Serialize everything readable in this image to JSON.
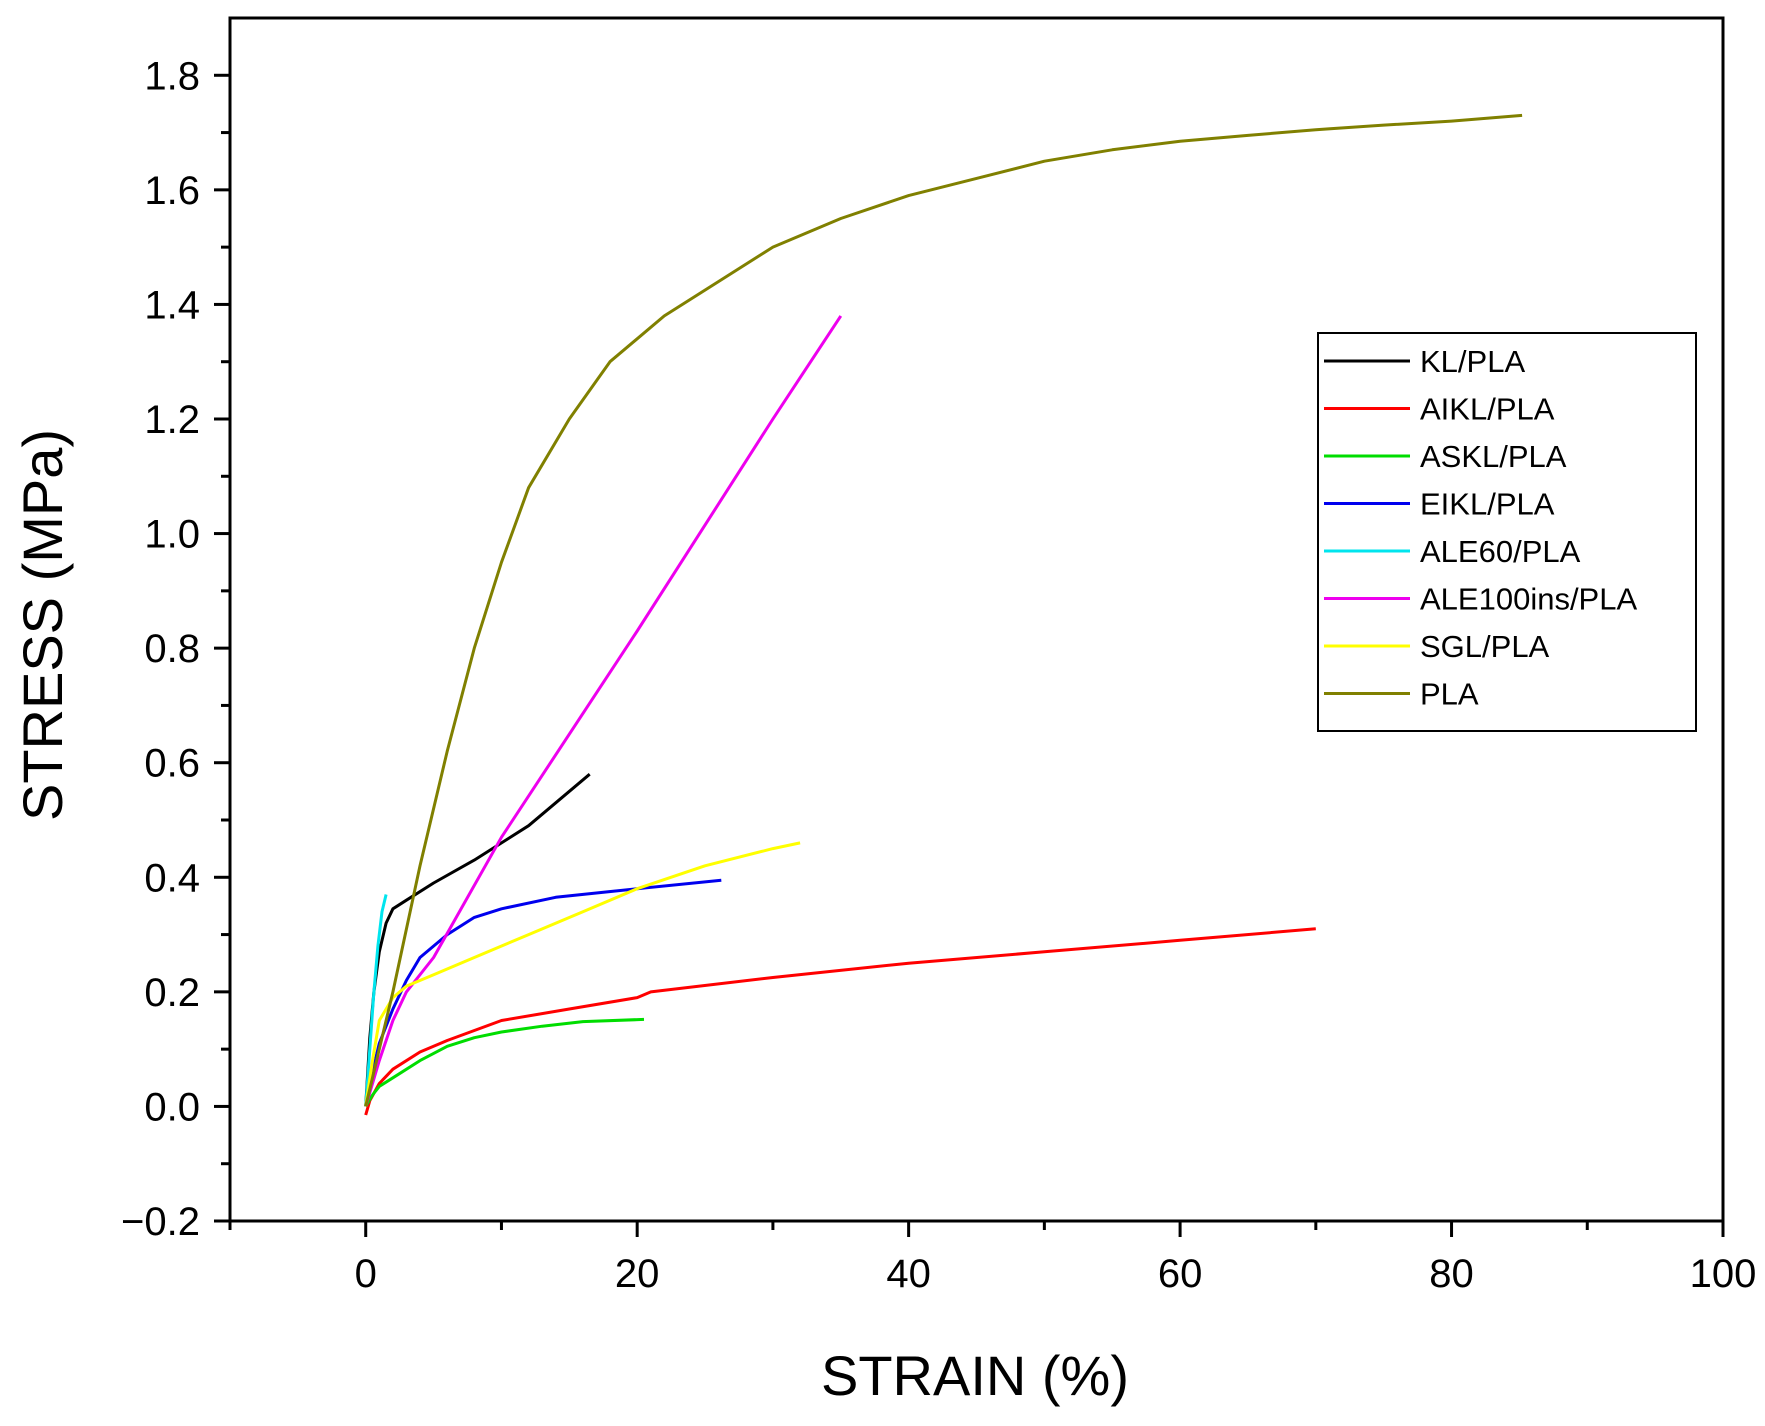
{
  "chart_data": {
    "type": "line",
    "title": "",
    "xlabel": "STRAIN (%)",
    "ylabel": "STRESS (MPa)",
    "xlim": [
      -10,
      100
    ],
    "ylim": [
      -0.2,
      1.9
    ],
    "x_ticks": [
      0,
      20,
      40,
      60,
      80,
      100
    ],
    "x_tick_labels": [
      "0",
      "20",
      "40",
      "60",
      "80",
      "100"
    ],
    "y_ticks": [
      -0.2,
      0.0,
      0.2,
      0.4,
      0.6,
      0.8,
      1.0,
      1.2,
      1.4,
      1.6,
      1.8
    ],
    "y_tick_labels": [
      "−0.2",
      "0.0",
      "0.2",
      "0.4",
      "0.6",
      "0.8",
      "1.0",
      "1.2",
      "1.4",
      "1.6",
      "1.8"
    ],
    "grid": false,
    "legend_position": "right",
    "series": [
      {
        "name": "KL/PLA",
        "color": "#000000",
        "points": [
          [
            0,
            0
          ],
          [
            0.3,
            0.12
          ],
          [
            0.6,
            0.2
          ],
          [
            1.0,
            0.27
          ],
          [
            1.5,
            0.32
          ],
          [
            2.0,
            0.345
          ],
          [
            3.0,
            0.36
          ],
          [
            5.0,
            0.39
          ],
          [
            8.0,
            0.43
          ],
          [
            12.0,
            0.49
          ],
          [
            16.5,
            0.58
          ]
        ]
      },
      {
        "name": "AIKL/PLA",
        "color": "#ff0000",
        "points": [
          [
            0,
            -0.015
          ],
          [
            0.3,
            0.01
          ],
          [
            1,
            0.04
          ],
          [
            2,
            0.065
          ],
          [
            4,
            0.095
          ],
          [
            6,
            0.115
          ],
          [
            10,
            0.15
          ],
          [
            15,
            0.17
          ],
          [
            20,
            0.19
          ],
          [
            21,
            0.2
          ],
          [
            30,
            0.225
          ],
          [
            40,
            0.25
          ],
          [
            50,
            0.27
          ],
          [
            60,
            0.29
          ],
          [
            70,
            0.31
          ]
        ]
      },
      {
        "name": "ASKL/PLA",
        "color": "#00dd00",
        "points": [
          [
            0,
            0
          ],
          [
            0.5,
            0.02
          ],
          [
            1,
            0.035
          ],
          [
            2,
            0.05
          ],
          [
            4,
            0.08
          ],
          [
            6,
            0.105
          ],
          [
            8,
            0.12
          ],
          [
            10,
            0.13
          ],
          [
            13,
            0.14
          ],
          [
            16,
            0.148
          ],
          [
            20.5,
            0.152
          ]
        ]
      },
      {
        "name": "EIKL/PLA",
        "color": "#0000ee",
        "points": [
          [
            0,
            0
          ],
          [
            0.5,
            0.06
          ],
          [
            1,
            0.11
          ],
          [
            2,
            0.17
          ],
          [
            3,
            0.22
          ],
          [
            4,
            0.26
          ],
          [
            6,
            0.3
          ],
          [
            8,
            0.33
          ],
          [
            10,
            0.345
          ],
          [
            14,
            0.365
          ],
          [
            20,
            0.38
          ],
          [
            26.2,
            0.395
          ]
        ]
      },
      {
        "name": "ALE60/PLA",
        "color": "#00e5ee",
        "points": [
          [
            0,
            0
          ],
          [
            0.3,
            0.1
          ],
          [
            0.6,
            0.2
          ],
          [
            0.9,
            0.28
          ],
          [
            1.2,
            0.34
          ],
          [
            1.5,
            0.37
          ]
        ]
      },
      {
        "name": "ALE100ins/PLA",
        "color": "#ee00ee",
        "points": [
          [
            0,
            0
          ],
          [
            1,
            0.08
          ],
          [
            2,
            0.15
          ],
          [
            3,
            0.2
          ],
          [
            5,
            0.26
          ],
          [
            10,
            0.47
          ],
          [
            20,
            0.83
          ],
          [
            30,
            1.2
          ],
          [
            35,
            1.38
          ]
        ]
      },
      {
        "name": "SGL/PLA",
        "color": "#ffff00",
        "points": [
          [
            0,
            0
          ],
          [
            0.5,
            0.08
          ],
          [
            1,
            0.15
          ],
          [
            2,
            0.19
          ],
          [
            3,
            0.21
          ],
          [
            5,
            0.23
          ],
          [
            8,
            0.26
          ],
          [
            12,
            0.3
          ],
          [
            16,
            0.34
          ],
          [
            20,
            0.38
          ],
          [
            25,
            0.42
          ],
          [
            30,
            0.45
          ],
          [
            32,
            0.46
          ]
        ]
      },
      {
        "name": "PLA",
        "color": "#808000",
        "points": [
          [
            0,
            0
          ],
          [
            2,
            0.2
          ],
          [
            4,
            0.42
          ],
          [
            6,
            0.62
          ],
          [
            8,
            0.8
          ],
          [
            10,
            0.95
          ],
          [
            12,
            1.08
          ],
          [
            15,
            1.2
          ],
          [
            18,
            1.3
          ],
          [
            22,
            1.38
          ],
          [
            26,
            1.44
          ],
          [
            30,
            1.5
          ],
          [
            35,
            1.55
          ],
          [
            40,
            1.59
          ],
          [
            45,
            1.62
          ],
          [
            50,
            1.65
          ],
          [
            55,
            1.67
          ],
          [
            60,
            1.685
          ],
          [
            65,
            1.695
          ],
          [
            70,
            1.705
          ],
          [
            75,
            1.713
          ],
          [
            80,
            1.72
          ],
          [
            85.2,
            1.73
          ]
        ]
      }
    ]
  }
}
